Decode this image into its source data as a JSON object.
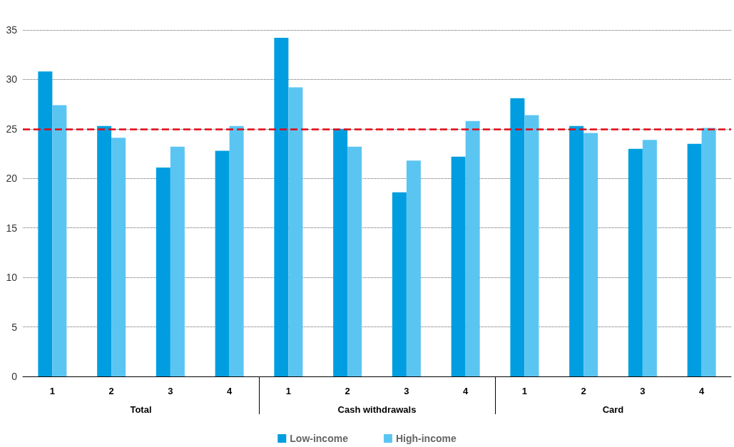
{
  "chart_data": {
    "type": "bar",
    "categories": [
      "1",
      "2",
      "3",
      "4",
      "1",
      "2",
      "3",
      "4",
      "1",
      "2",
      "3",
      "4"
    ],
    "annotations": [
      "Total",
      "Cash withdrawals",
      "Card"
    ],
    "series": [
      {
        "name": "Low-income",
        "color": "#009ee0",
        "values": [
          30.8,
          25.3,
          21.1,
          22.8,
          34.2,
          25.0,
          18.6,
          22.2,
          28.1,
          25.3,
          23.0,
          23.5
        ]
      },
      {
        "name": "High-income",
        "color": "#5bc5f2",
        "values": [
          27.4,
          24.1,
          23.2,
          25.3,
          29.2,
          23.2,
          21.8,
          25.8,
          26.4,
          24.6,
          23.9,
          25.1
        ]
      }
    ],
    "ylim": [
      0,
      35
    ],
    "yticks": [
      0,
      5,
      10,
      15,
      20,
      25,
      30,
      35
    ],
    "ref_lines": [
      {
        "axis": "y",
        "value": 25,
        "color": "#e30613",
        "line_style": "dashed"
      }
    ],
    "grid": "y",
    "legend": "bottom"
  }
}
